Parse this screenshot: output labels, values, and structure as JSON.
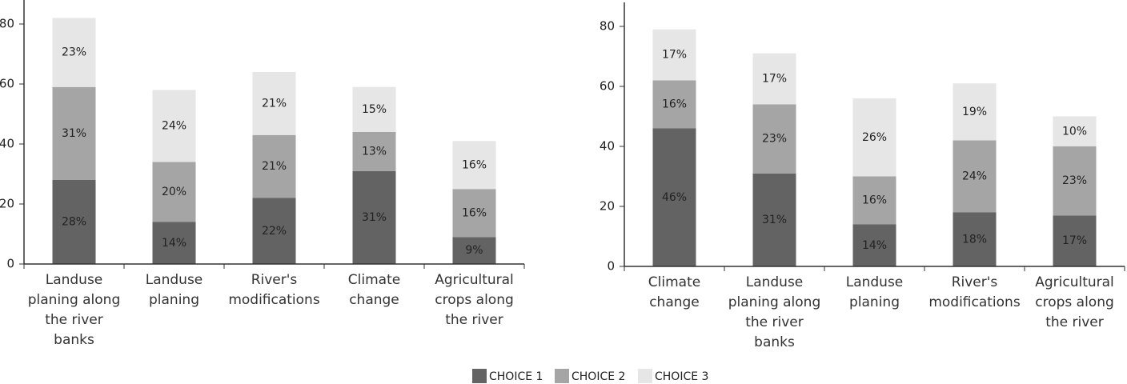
{
  "chart_data": [
    {
      "type": "stacked_bar",
      "categories": [
        "Landuse planing along the river banks",
        "Landuse planing",
        "River's modifications",
        "Climate change",
        "Agricultural crops along the river"
      ],
      "series": [
        {
          "name": "CHOICE 1",
          "color": "#636363",
          "values": [
            28,
            14,
            22,
            31,
            9
          ],
          "value_labels": [
            "28%",
            "14%",
            "22%",
            "31%",
            "9%"
          ]
        },
        {
          "name": "CHOICE 2",
          "color": "#a5a5a5",
          "values": [
            31,
            20,
            21,
            13,
            16
          ],
          "value_labels": [
            "31%",
            "20%",
            "21%",
            "13%",
            "16%"
          ]
        },
        {
          "name": "CHOICE 3",
          "color": "#e6e6e6",
          "values": [
            23,
            24,
            21,
            15,
            16
          ],
          "value_labels": [
            "23%",
            "24%",
            "21%",
            "15%",
            "16%"
          ]
        }
      ],
      "ylim": [
        0,
        88
      ],
      "yticks": [
        0,
        20,
        40,
        60,
        80
      ]
    },
    {
      "type": "stacked_bar",
      "categories": [
        "Climate change",
        "Landuse planing along the river banks",
        "Landuse planing",
        "River's modifications",
        "Agricultural crops along the river"
      ],
      "series": [
        {
          "name": "CHOICE 1",
          "color": "#636363",
          "values": [
            46,
            31,
            14,
            18,
            17
          ],
          "value_labels": [
            "46%",
            "31%",
            "14%",
            "18%",
            "17%"
          ]
        },
        {
          "name": "CHOICE 2",
          "color": "#a5a5a5",
          "values": [
            16,
            23,
            16,
            24,
            23
          ],
          "value_labels": [
            "16%",
            "23%",
            "16%",
            "24%",
            "23%"
          ]
        },
        {
          "name": "CHOICE 3",
          "color": "#e6e6e6",
          "values": [
            17,
            17,
            26,
            19,
            10
          ],
          "value_labels": [
            "17%",
            "17%",
            "26%",
            "19%",
            "10%"
          ]
        }
      ],
      "ylim": [
        0,
        88
      ],
      "yticks": [
        0,
        20,
        40,
        60,
        80
      ]
    }
  ]
}
